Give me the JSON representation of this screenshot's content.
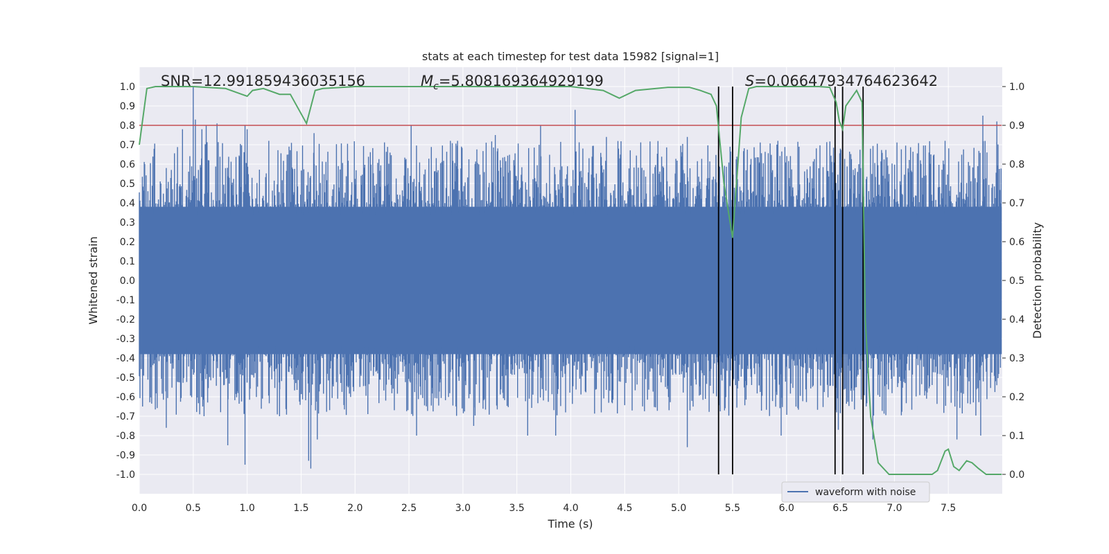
{
  "chart_data": {
    "type": "line",
    "title": "stats at each timestep for test data 15982 [signal=1]",
    "xlabel": "Time (s)",
    "ylabel": "Whitened strain",
    "y2label": "Detection probability",
    "xlim": [
      0.0,
      8.0
    ],
    "ylim": [
      -1.1,
      1.1
    ],
    "y2lim": [
      -0.05,
      1.05
    ],
    "x_ticks": [
      "0.0",
      "0.5",
      "1.0",
      "1.5",
      "2.0",
      "2.5",
      "3.0",
      "3.5",
      "4.0",
      "4.5",
      "5.0",
      "5.5",
      "6.0",
      "6.5",
      "7.0",
      "7.5"
    ],
    "y_ticks": [
      "1.0",
      "0.9",
      "0.8",
      "0.7",
      "0.6",
      "0.5",
      "0.4",
      "0.3",
      "0.2",
      "0.1",
      "0.0",
      "-0.1",
      "-0.2",
      "-0.3",
      "-0.4",
      "-0.5",
      "-0.6",
      "-0.7",
      "-0.8",
      "-0.9",
      "-1.0"
    ],
    "y2_ticks": [
      "1.0",
      "0.9",
      "0.8",
      "0.7",
      "0.6",
      "0.5",
      "0.4",
      "0.3",
      "0.2",
      "0.1",
      "0.0"
    ],
    "grid": true,
    "legend_position": "lower-right",
    "colors": {
      "background": "#eaeaf2",
      "waveform": "#4c72b0",
      "probability": "#55a868",
      "threshold": "#c44e52",
      "markers": "#000000"
    },
    "annotations": {
      "snr_text": "SNR=12.991859436035156",
      "mc_symbol": "M",
      "mc_subscript": "c",
      "mc_value": "=5.808169364929199",
      "s_symbol": "S",
      "s_value": "=0.06647934764623642"
    },
    "threshold": 0.8,
    "vertical_lines": [
      5.37,
      5.5,
      6.45,
      6.52,
      6.71
    ],
    "series": [
      {
        "name": "waveform with noise",
        "axis": "left",
        "style": "dense noise trace",
        "core_amplitude": 0.38,
        "peaks_positive": [
          [
            0.05,
            0.6
          ],
          [
            0.25,
            0.58
          ],
          [
            0.4,
            0.78
          ],
          [
            0.5,
            1.0
          ],
          [
            0.52,
            0.83
          ],
          [
            0.58,
            0.78
          ],
          [
            0.62,
            0.8
          ],
          [
            0.72,
            0.81
          ],
          [
            0.98,
            0.8
          ],
          [
            1.0,
            0.78
          ],
          [
            1.2,
            0.72
          ],
          [
            1.62,
            0.76
          ],
          [
            2.52,
            0.8
          ],
          [
            2.95,
            0.72
          ],
          [
            3.3,
            0.75
          ],
          [
            3.72,
            0.8
          ],
          [
            4.04,
            0.88
          ],
          [
            4.33,
            0.74
          ],
          [
            5.08,
            0.74
          ],
          [
            5.92,
            0.72
          ],
          [
            6.45,
            0.68
          ],
          [
            7.47,
            0.72
          ],
          [
            7.82,
            0.85
          ],
          [
            7.95,
            0.82
          ]
        ],
        "peaks_negative": [
          [
            0.03,
            -0.65
          ],
          [
            0.25,
            -0.76
          ],
          [
            0.6,
            -0.7
          ],
          [
            0.82,
            -0.85
          ],
          [
            0.98,
            -0.95
          ],
          [
            1.3,
            -0.7
          ],
          [
            1.57,
            -0.93
          ],
          [
            1.59,
            -0.97
          ],
          [
            1.65,
            -0.82
          ],
          [
            2.57,
            -0.8
          ],
          [
            3.1,
            -0.75
          ],
          [
            3.6,
            -0.8
          ],
          [
            3.86,
            -0.8
          ],
          [
            5.08,
            -0.86
          ],
          [
            5.95,
            -0.8
          ],
          [
            6.48,
            -0.77
          ],
          [
            6.8,
            -0.82
          ],
          [
            7.58,
            -0.82
          ],
          [
            7.8,
            -0.8
          ]
        ]
      },
      {
        "name": "",
        "axis": "right",
        "x": [
          0.0,
          0.07,
          0.15,
          0.5,
          0.8,
          0.95,
          1.0,
          1.05,
          1.15,
          1.3,
          1.4,
          1.5,
          1.55,
          1.63,
          1.7,
          2.0,
          3.0,
          4.0,
          4.3,
          4.45,
          4.6,
          4.9,
          5.1,
          5.2,
          5.3,
          5.35,
          5.42,
          5.5,
          5.58,
          5.65,
          5.72,
          6.0,
          6.3,
          6.4,
          6.46,
          6.49,
          6.52,
          6.55,
          6.6,
          6.65,
          6.7,
          6.73,
          6.78,
          6.85,
          6.95,
          7.05,
          7.2,
          7.35,
          7.4,
          7.47,
          7.5,
          7.55,
          7.6,
          7.67,
          7.72,
          7.78,
          7.85,
          8.0
        ],
        "y": [
          0.85,
          0.995,
          1.0,
          1.0,
          0.995,
          0.98,
          0.975,
          0.99,
          0.995,
          0.98,
          0.98,
          0.93,
          0.905,
          0.99,
          0.995,
          1.0,
          1.0,
          1.0,
          0.99,
          0.97,
          0.99,
          0.998,
          0.998,
          0.99,
          0.98,
          0.95,
          0.75,
          0.61,
          0.92,
          0.995,
          1.0,
          1.0,
          1.0,
          0.998,
          0.96,
          0.91,
          0.89,
          0.95,
          0.97,
          0.99,
          0.96,
          0.4,
          0.15,
          0.03,
          0.0,
          0.0,
          0.0,
          0.0,
          0.01,
          0.06,
          0.065,
          0.02,
          0.01,
          0.035,
          0.03,
          0.015,
          0.0,
          0.0
        ]
      }
    ]
  }
}
